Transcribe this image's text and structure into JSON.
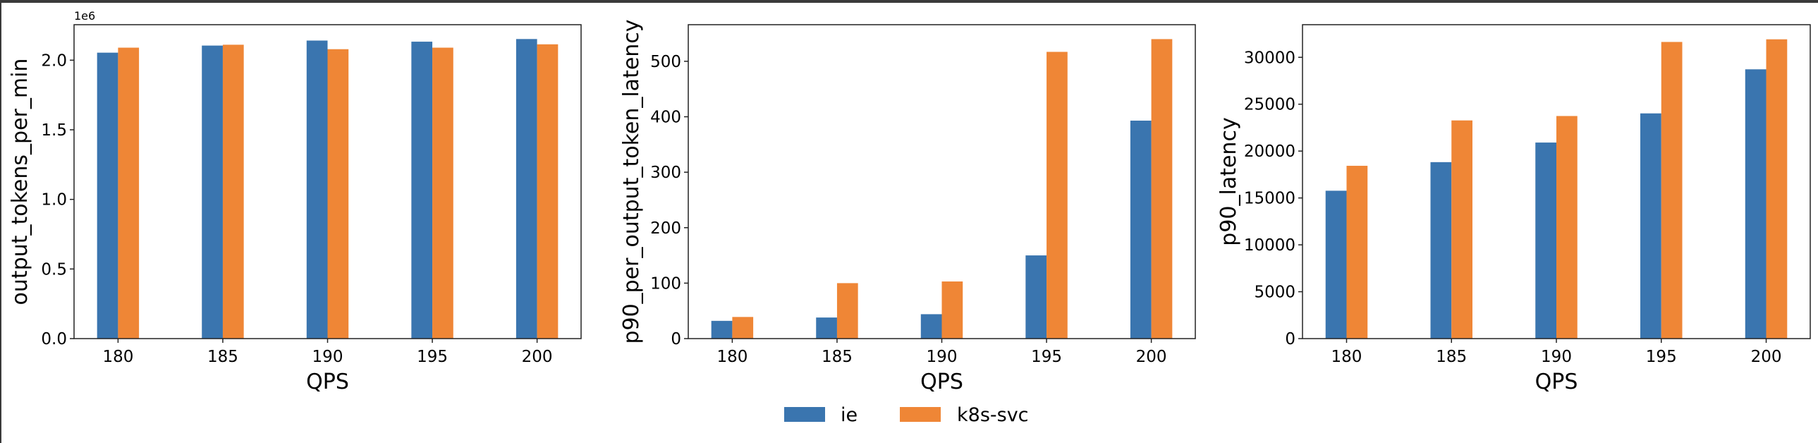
{
  "legend": {
    "placement": "bottom-center",
    "items": [
      {
        "name": "ie",
        "color": "#3a75af"
      },
      {
        "name": "k8s-svc",
        "color": "#ef8636"
      }
    ]
  },
  "chart_data": [
    {
      "type": "bar",
      "categories": [
        "180",
        "185",
        "190",
        "195",
        "200"
      ],
      "x": [
        180,
        185,
        190,
        195,
        200
      ],
      "xlabel": "QPS",
      "ylabel": "output_tokens_per_min",
      "offset_label": "1e6",
      "ylim": [
        0,
        2.255
      ],
      "yticks": [
        0.0,
        0.5,
        1.0,
        1.5,
        2.0
      ],
      "ytick_labels": [
        "0.0",
        "0.5",
        "1.0",
        "1.5",
        "2.0"
      ],
      "grid": false,
      "series": [
        {
          "name": "ie",
          "values": [
            2.054,
            2.105,
            2.141,
            2.133,
            2.152
          ]
        },
        {
          "name": "k8s-svc",
          "values": [
            2.09,
            2.111,
            2.079,
            2.09,
            2.114
          ]
        }
      ]
    },
    {
      "type": "bar",
      "categories": [
        "180",
        "185",
        "190",
        "195",
        "200"
      ],
      "x": [
        180,
        185,
        190,
        195,
        200
      ],
      "xlabel": "QPS",
      "ylabel": "p90_per_output_token_latency",
      "ylim": [
        0,
        566
      ],
      "yticks": [
        0,
        100,
        200,
        300,
        400,
        500
      ],
      "ytick_labels": [
        "0",
        "100",
        "200",
        "300",
        "400",
        "500"
      ],
      "grid": false,
      "series": [
        {
          "name": "ie",
          "values": [
            32,
            38,
            44,
            150,
            393
          ]
        },
        {
          "name": "k8s-svc",
          "values": [
            39,
            100,
            103,
            517,
            540
          ]
        }
      ]
    },
    {
      "type": "bar",
      "categories": [
        "180",
        "185",
        "190",
        "195",
        "200"
      ],
      "x": [
        180,
        185,
        190,
        195,
        200
      ],
      "xlabel": "QPS",
      "ylabel": "p90_latency",
      "ylim": [
        0,
        33480
      ],
      "yticks": [
        0,
        5000,
        10000,
        15000,
        20000,
        25000,
        30000
      ],
      "ytick_labels": [
        "0",
        "5000",
        "10000",
        "15000",
        "20000",
        "25000",
        "30000"
      ],
      "grid": false,
      "series": [
        {
          "name": "ie",
          "values": [
            15770,
            18820,
            20910,
            24020,
            28720
          ]
        },
        {
          "name": "k8s-svc",
          "values": [
            18430,
            23270,
            23740,
            31640,
            31920
          ]
        }
      ]
    }
  ]
}
